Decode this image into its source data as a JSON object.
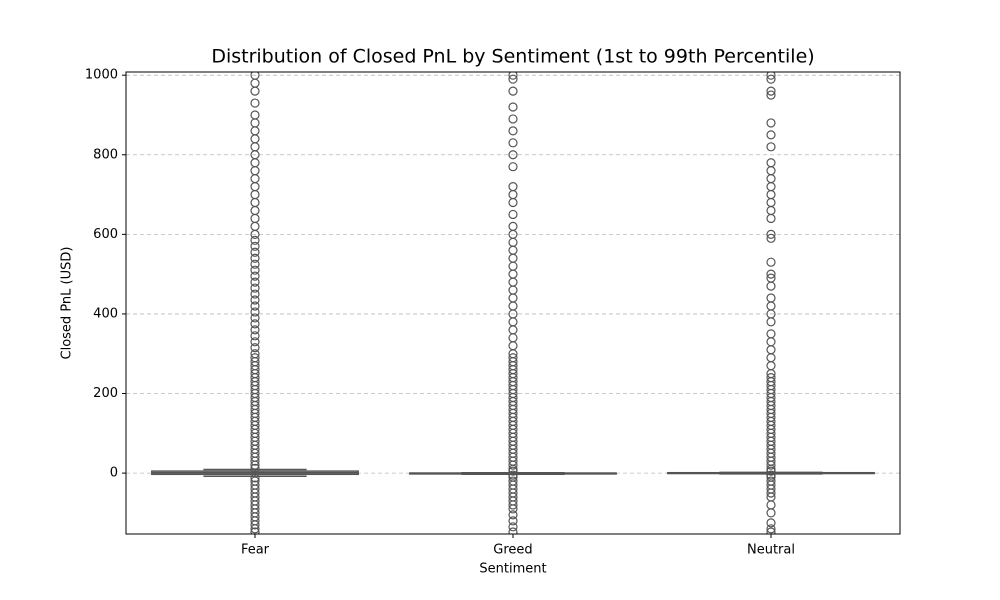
{
  "chart_data": {
    "type": "box",
    "title": "Distribution of Closed PnL by Sentiment (1st to 99th Percentile)",
    "x_label": "Sentiment",
    "y_label": "Closed PnL (USD)",
    "categories": [
      "Fear",
      "Greed",
      "Neutral"
    ],
    "color": "#555555",
    "ylim": [
      -153,
      1008
    ],
    "yticks": [
      0,
      200,
      400,
      600,
      800,
      1000
    ],
    "grid": true,
    "boxes": [
      {
        "whislo": -8,
        "q1": -3,
        "med": 1,
        "q3": 5,
        "whishi": 9,
        "fliers": [
          -148,
          -140,
          -130,
          -120,
          -110,
          -100,
          -90,
          -80,
          -70,
          -60,
          -50,
          -40,
          -30,
          -20,
          -12,
          12,
          20,
          30,
          40,
          50,
          60,
          70,
          80,
          90,
          100,
          110,
          120,
          130,
          140,
          150,
          160,
          170,
          180,
          190,
          200,
          210,
          220,
          230,
          240,
          250,
          260,
          270,
          280,
          290,
          300,
          315,
          330,
          345,
          360,
          375,
          390,
          405,
          420,
          435,
          450,
          465,
          480,
          495,
          510,
          525,
          540,
          555,
          570,
          585,
          600,
          620,
          640,
          660,
          680,
          700,
          720,
          740,
          760,
          780,
          800,
          820,
          840,
          860,
          880,
          900,
          930,
          960,
          980,
          1000
        ]
      },
      {
        "whislo": -3,
        "q1": -2,
        "med": 0,
        "q3": 0,
        "whishi": 1,
        "fliers": [
          -148,
          -135,
          -120,
          -105,
          -90,
          -80,
          -70,
          -60,
          -50,
          -40,
          -30,
          -20,
          -10,
          -5,
          5,
          10,
          20,
          30,
          40,
          50,
          60,
          70,
          80,
          90,
          100,
          110,
          120,
          130,
          140,
          150,
          160,
          170,
          180,
          190,
          200,
          210,
          220,
          230,
          240,
          250,
          260,
          270,
          280,
          290,
          300,
          320,
          340,
          360,
          380,
          400,
          420,
          440,
          460,
          480,
          500,
          520,
          540,
          560,
          580,
          600,
          620,
          650,
          680,
          700,
          720,
          770,
          800,
          830,
          860,
          890,
          920,
          960,
          990,
          1000
        ]
      },
      {
        "whislo": -2,
        "q1": -1,
        "med": 0,
        "q3": 1,
        "whishi": 2,
        "fliers": [
          -148,
          -140,
          -125,
          -100,
          -80,
          -60,
          -50,
          -40,
          -30,
          -20,
          -10,
          -5,
          5,
          10,
          20,
          30,
          40,
          50,
          60,
          70,
          80,
          90,
          100,
          110,
          120,
          130,
          140,
          150,
          160,
          170,
          180,
          190,
          200,
          210,
          220,
          230,
          240,
          250,
          270,
          290,
          310,
          330,
          350,
          380,
          400,
          420,
          440,
          470,
          490,
          500,
          530,
          590,
          600,
          640,
          660,
          680,
          700,
          720,
          740,
          760,
          780,
          820,
          850,
          880,
          950,
          960,
          990,
          1000
        ]
      }
    ]
  }
}
